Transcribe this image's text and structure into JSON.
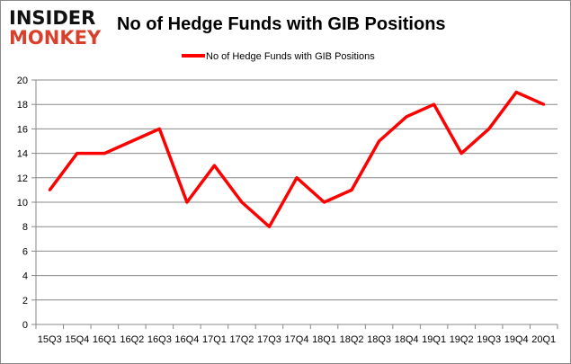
{
  "logo": {
    "line1": "INSIDER",
    "line2": "MONKEY"
  },
  "chart_data": {
    "type": "line",
    "title": "No of Hedge Funds with GIB Positions",
    "xlabel": "",
    "ylabel": "",
    "categories": [
      "15Q3",
      "15Q4",
      "16Q1",
      "16Q2",
      "16Q3",
      "16Q4",
      "17Q1",
      "17Q2",
      "17Q3",
      "17Q4",
      "18Q1",
      "18Q2",
      "18Q3",
      "18Q4",
      "19Q1",
      "19Q2",
      "19Q3",
      "19Q4",
      "20Q1"
    ],
    "series": [
      {
        "name": "No of Hedge Funds with GIB Positions",
        "color": "#ff0000",
        "values": [
          11,
          14,
          14,
          15,
          16,
          10,
          13,
          10,
          8,
          12,
          10,
          11,
          15,
          17,
          18,
          14,
          16,
          19,
          18
        ]
      }
    ],
    "ylim": [
      0,
      20
    ],
    "yticks": [
      0,
      2,
      4,
      6,
      8,
      10,
      12,
      14,
      16,
      18,
      20
    ],
    "grid": true,
    "legend_position": "top"
  }
}
